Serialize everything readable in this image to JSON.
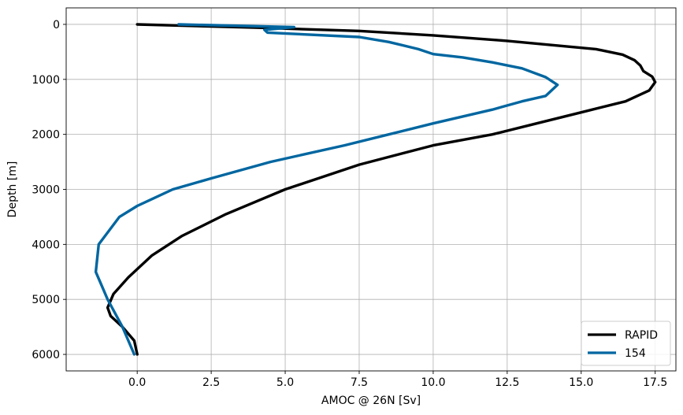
{
  "chart_data": {
    "type": "line",
    "title": "",
    "xlabel": "AMOC @ 26N [Sv]",
    "ylabel": "Depth [m]",
    "xlim": [
      -2.4,
      18.2
    ],
    "ylim": [
      6300,
      -300
    ],
    "y_inverted": true,
    "grid": true,
    "legend_position": "bottom-right",
    "xticks": [
      0.0,
      2.5,
      5.0,
      7.5,
      10.0,
      12.5,
      15.0,
      17.5
    ],
    "xtick_labels": [
      "0.0",
      "2.5",
      "5.0",
      "7.5",
      "10.0",
      "12.5",
      "15.0",
      "17.5"
    ],
    "yticks": [
      0,
      1000,
      2000,
      3000,
      4000,
      5000,
      6000
    ],
    "ytick_labels": [
      "0",
      "1000",
      "2000",
      "3000",
      "4000",
      "5000",
      "6000"
    ],
    "series": [
      {
        "name": "RAPID",
        "color": "#000000",
        "points": [
          [
            0.0,
            0
          ],
          [
            4.0,
            60
          ],
          [
            7.5,
            120
          ],
          [
            10.0,
            200
          ],
          [
            12.5,
            300
          ],
          [
            14.5,
            400
          ],
          [
            15.5,
            450
          ],
          [
            16.4,
            550
          ],
          [
            16.8,
            650
          ],
          [
            17.0,
            750
          ],
          [
            17.1,
            850
          ],
          [
            17.4,
            950
          ],
          [
            17.5,
            1050
          ],
          [
            17.3,
            1200
          ],
          [
            16.5,
            1400
          ],
          [
            15.0,
            1600
          ],
          [
            13.5,
            1800
          ],
          [
            12.0,
            2000
          ],
          [
            10.0,
            2200
          ],
          [
            7.5,
            2550
          ],
          [
            5.0,
            3000
          ],
          [
            3.0,
            3450
          ],
          [
            1.5,
            3850
          ],
          [
            0.5,
            4200
          ],
          [
            -0.3,
            4600
          ],
          [
            -0.8,
            4900
          ],
          [
            -1.0,
            5150
          ],
          [
            -0.9,
            5300
          ],
          [
            -0.5,
            5500
          ],
          [
            -0.1,
            5750
          ],
          [
            0.0,
            6000
          ]
        ]
      },
      {
        "name": "154",
        "color": "#0066A0",
        "points": [
          [
            1.4,
            0
          ],
          [
            5.3,
            50
          ],
          [
            4.3,
            100
          ],
          [
            4.4,
            150
          ],
          [
            7.5,
            230
          ],
          [
            8.5,
            320
          ],
          [
            9.5,
            450
          ],
          [
            10.0,
            540
          ],
          [
            11.0,
            600
          ],
          [
            12.0,
            690
          ],
          [
            13.0,
            800
          ],
          [
            13.8,
            960
          ],
          [
            14.2,
            1100
          ],
          [
            13.8,
            1300
          ],
          [
            13.0,
            1400
          ],
          [
            12.0,
            1550
          ],
          [
            10.0,
            1800
          ],
          [
            8.5,
            2000
          ],
          [
            7.0,
            2200
          ],
          [
            4.5,
            2500
          ],
          [
            2.5,
            2800
          ],
          [
            1.2,
            3000
          ],
          [
            0.0,
            3300
          ],
          [
            -0.6,
            3500
          ],
          [
            -1.3,
            4000
          ],
          [
            -1.4,
            4500
          ],
          [
            -1.0,
            5000
          ],
          [
            -0.5,
            5500
          ],
          [
            -0.1,
            6000
          ]
        ]
      }
    ]
  }
}
